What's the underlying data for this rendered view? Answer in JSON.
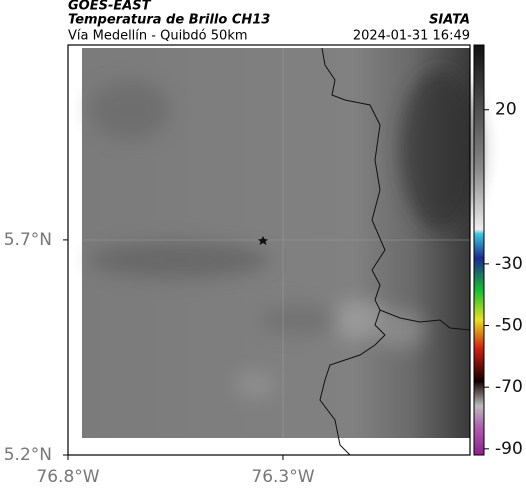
{
  "header": {
    "source": "GOES-EAST",
    "product": "Temperatura de Brillo CH13",
    "region": "Vía Medellín - Quibdó 50km",
    "agency": "SIATA",
    "timestamp": "2024-01-31 16:49"
  },
  "map": {
    "lon_lim": [
      -76.8,
      -75.865
    ],
    "lat_lim": [
      5.2,
      6.153
    ],
    "lon_ticks": [
      {
        "value": -76.8,
        "label": "76.8°W"
      },
      {
        "value": -76.3,
        "label": "76.3°W"
      }
    ],
    "lat_ticks": [
      {
        "value": 5.7,
        "label": "5.7°N"
      },
      {
        "value": 5.2,
        "label": "5.2°N"
      }
    ]
  },
  "colorbar": {
    "lim": [
      -92,
      41
    ],
    "ticks": [
      20,
      -30,
      -50,
      -70,
      -90
    ]
  }
}
